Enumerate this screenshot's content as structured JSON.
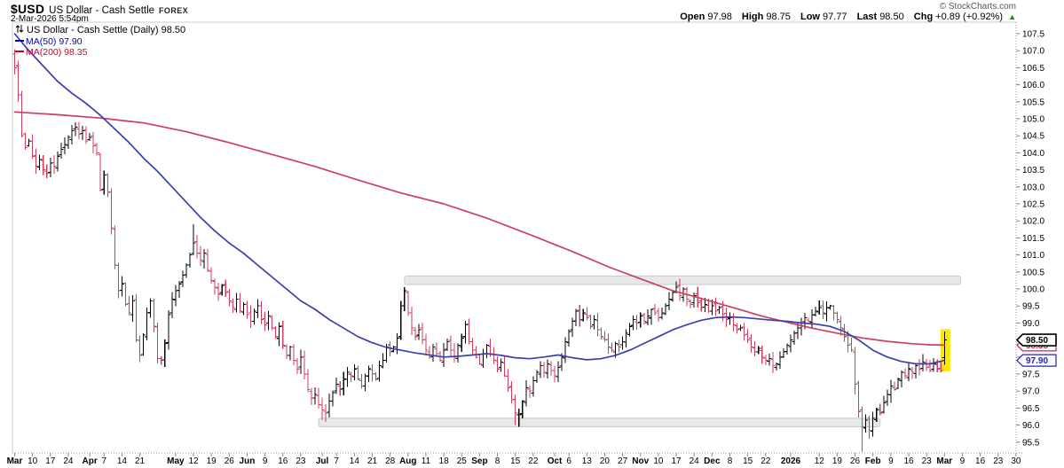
{
  "header": {
    "symbol": "$USD",
    "name": "US Dollar - Cash Settle",
    "exchange": "FOREX",
    "datetime": "2-Mar-2026 5:54pm",
    "copyright": "© StockCharts.com",
    "quote": {
      "open_label": "Open",
      "open": "97.98",
      "high_label": "High",
      "high": "98.75",
      "low_label": "Low",
      "low": "97.77",
      "last_label": "Last",
      "last": "98.50",
      "chg_label": "Chg",
      "chg": "+0.89 (+0.92%)",
      "arrow": "▲",
      "direction": "up"
    }
  },
  "legend": {
    "title": "US Dollar - Cash Settle (Daily) 98.50",
    "ma50": "MA(50) 97.90",
    "ma200": "MA(200) 98.35"
  },
  "chart_data": {
    "type": "ohlc-bar",
    "title": "US Dollar - Cash Settle (Daily)",
    "symbol": "$USD",
    "timeframe": "Daily",
    "last_close": 98.5,
    "prev_close": 97.61,
    "today": {
      "open": 97.98,
      "high": 98.75,
      "low": 97.77,
      "close": 98.5,
      "change": 0.89,
      "change_pct": 0.92
    },
    "ma50_value": 97.9,
    "ma200_value": 98.35,
    "y_axis": {
      "min": 95.5,
      "max": 107.5,
      "step": 0.5
    },
    "x_domain_days": 281,
    "x_ticks": [
      {
        "label": "Mar",
        "day": 0,
        "bold": true
      },
      {
        "label": "10",
        "day": 5
      },
      {
        "label": "17",
        "day": 10
      },
      {
        "label": "24",
        "day": 15
      },
      {
        "label": "Apr",
        "day": 21,
        "bold": true
      },
      {
        "label": "7",
        "day": 25
      },
      {
        "label": "14",
        "day": 30
      },
      {
        "label": "21",
        "day": 35
      },
      {
        "label": "May",
        "day": 45,
        "bold": true
      },
      {
        "label": "12",
        "day": 50
      },
      {
        "label": "19",
        "day": 55
      },
      {
        "label": "26",
        "day": 60
      },
      {
        "label": "Jun",
        "day": 65,
        "bold": true
      },
      {
        "label": "9",
        "day": 70
      },
      {
        "label": "16",
        "day": 75
      },
      {
        "label": "23",
        "day": 80
      },
      {
        "label": "Jul",
        "day": 86,
        "bold": true
      },
      {
        "label": "7",
        "day": 90
      },
      {
        "label": "14",
        "day": 95
      },
      {
        "label": "21",
        "day": 100
      },
      {
        "label": "28",
        "day": 105
      },
      {
        "label": "Aug",
        "day": 110,
        "bold": true
      },
      {
        "label": "11",
        "day": 115
      },
      {
        "label": "18",
        "day": 120
      },
      {
        "label": "25",
        "day": 125
      },
      {
        "label": "Sep",
        "day": 130,
        "bold": true
      },
      {
        "label": "8",
        "day": 135
      },
      {
        "label": "15",
        "day": 140
      },
      {
        "label": "22",
        "day": 145
      },
      {
        "label": "Oct",
        "day": 151,
        "bold": true
      },
      {
        "label": "6",
        "day": 155
      },
      {
        "label": "13",
        "day": 160
      },
      {
        "label": "20",
        "day": 165
      },
      {
        "label": "27",
        "day": 170
      },
      {
        "label": "Nov",
        "day": 175,
        "bold": true
      },
      {
        "label": "10",
        "day": 180
      },
      {
        "label": "17",
        "day": 185
      },
      {
        "label": "24",
        "day": 190
      },
      {
        "label": "Dec",
        "day": 195,
        "bold": true
      },
      {
        "label": "8",
        "day": 200
      },
      {
        "label": "15",
        "day": 205
      },
      {
        "label": "22",
        "day": 210
      },
      {
        "label": "2026",
        "day": 217,
        "bold": true
      },
      {
        "label": "12",
        "day": 225
      },
      {
        "label": "19",
        "day": 230
      },
      {
        "label": "26",
        "day": 235
      },
      {
        "label": "Feb",
        "day": 240,
        "bold": true
      },
      {
        "label": "9",
        "day": 245
      },
      {
        "label": "16",
        "day": 250
      },
      {
        "label": "23",
        "day": 255
      },
      {
        "label": "Mar",
        "day": 260,
        "bold": true
      },
      {
        "label": "9",
        "day": 265
      },
      {
        "label": "16",
        "day": 270
      },
      {
        "label": "23",
        "day": 275
      },
      {
        "label": "30",
        "day": 280
      }
    ],
    "closes": [
      106.5,
      105.7,
      104.5,
      104.15,
      104.35,
      103.9,
      103.6,
      103.8,
      103.5,
      103.4,
      103.7,
      103.6,
      103.9,
      104.1,
      104.25,
      104.45,
      104.65,
      104.75,
      104.55,
      104.65,
      104.35,
      104.45,
      104.2,
      104.0,
      102.9,
      103.35,
      102.85,
      101.8,
      100.7,
      99.95,
      100.15,
      99.55,
      99.3,
      99.65,
      98.5,
      98.05,
      98.65,
      99.3,
      99.65,
      98.9,
      97.95,
      97.9,
      98.4,
      99.25,
      99.7,
      99.95,
      100.15,
      100.4,
      100.7,
      101.0,
      101.35,
      101.05,
      100.85,
      101.05,
      100.55,
      100.25,
      100.05,
      99.85,
      100.1,
      99.9,
      99.65,
      99.45,
      99.7,
      99.35,
      99.55,
      99.25,
      99.05,
      99.35,
      99.5,
      99.1,
      98.95,
      99.2,
      98.85,
      98.6,
      98.9,
      98.35,
      98.05,
      98.3,
      97.9,
      97.65,
      98.0,
      97.5,
      97.05,
      96.8,
      96.9,
      96.6,
      96.45,
      96.35,
      96.7,
      96.95,
      97.2,
      97.05,
      97.35,
      97.55,
      97.45,
      97.65,
      97.35,
      97.15,
      97.45,
      97.65,
      97.5,
      97.35,
      97.75,
      97.9,
      98.3,
      98.15,
      98.3,
      98.55,
      99.5,
      99.95,
      99.3,
      98.85,
      98.6,
      98.8,
      98.5,
      98.2,
      98.0,
      98.3,
      98.1,
      97.9,
      98.2,
      98.45,
      98.2,
      98.0,
      98.35,
      98.55,
      98.95,
      98.45,
      98.2,
      98.0,
      97.8,
      98.1,
      98.35,
      98.1,
      97.9,
      97.65,
      97.85,
      97.45,
      97.1,
      96.75,
      96.35,
      96.3,
      96.7,
      97.1,
      97.0,
      97.3,
      97.55,
      97.75,
      97.55,
      97.8,
      97.6,
      97.45,
      97.7,
      98.0,
      98.45,
      98.75,
      99.05,
      99.35,
      99.1,
      99.3,
      99.15,
      98.9,
      99.1,
      98.8,
      98.6,
      98.5,
      98.3,
      98.2,
      98.4,
      98.3,
      98.45,
      98.7,
      98.9,
      99.1,
      99.0,
      99.2,
      99.05,
      99.2,
      99.4,
      99.3,
      99.15,
      99.3,
      99.5,
      99.7,
      99.9,
      100.05,
      99.8,
      100.0,
      99.7,
      99.55,
      99.8,
      99.6,
      99.45,
      99.55,
      99.35,
      99.5,
      99.35,
      99.45,
      99.25,
      99.1,
      99.15,
      98.95,
      98.8,
      98.85,
      98.65,
      98.5,
      98.3,
      98.15,
      98.25,
      98.0,
      97.9,
      97.95,
      97.75,
      97.8,
      98.0,
      98.15,
      98.35,
      98.5,
      98.7,
      98.85,
      99.0,
      99.15,
      99.05,
      99.25,
      99.35,
      99.45,
      99.3,
      99.45,
      99.5,
      99.3,
      99.1,
      98.85,
      98.6,
      98.35,
      98.2,
      97.2,
      96.4,
      95.95,
      96.15,
      95.85,
      96.2,
      96.45,
      96.35,
      96.65,
      96.9,
      97.15,
      97.05,
      97.35,
      97.55,
      97.45,
      97.65,
      97.55,
      97.75,
      97.65,
      97.85,
      97.7,
      97.6,
      97.8,
      97.65,
      97.61,
      98.5
    ],
    "bar_overrides": [
      {
        "day": 0,
        "open": 106.9,
        "high": 107.05,
        "low": 106.3
      },
      {
        "day": 50,
        "high": 101.9
      },
      {
        "day": 86,
        "low": 96.15
      },
      {
        "day": 87,
        "low": 96.1
      },
      {
        "day": 108,
        "open": 98.6,
        "high": 99.65,
        "low": 98.5
      },
      {
        "day": 109,
        "open": 99.5,
        "high": 100.05,
        "low": 99.35
      },
      {
        "day": 110,
        "open": 99.9,
        "high": 99.95,
        "low": 99.2
      },
      {
        "day": 140,
        "low": 96.0
      },
      {
        "day": 141,
        "low": 95.95
      },
      {
        "day": 186,
        "high": 100.3
      },
      {
        "day": 235,
        "open": 98.15,
        "high": 98.3,
        "low": 96.9
      },
      {
        "day": 237,
        "low": 95.22
      },
      {
        "day": 239,
        "low": 95.6
      },
      {
        "day": 260,
        "open": 97.98,
        "high": 98.75,
        "low": 97.77
      }
    ],
    "ma50_points": [
      [
        0,
        107.5
      ],
      [
        4,
        107.0
      ],
      [
        8,
        106.55
      ],
      [
        12,
        106.1
      ],
      [
        16,
        105.75
      ],
      [
        20,
        105.45
      ],
      [
        24,
        105.1
      ],
      [
        28,
        104.7
      ],
      [
        32,
        104.3
      ],
      [
        36,
        103.85
      ],
      [
        40,
        103.45
      ],
      [
        44,
        103.0
      ],
      [
        48,
        102.55
      ],
      [
        52,
        102.1
      ],
      [
        56,
        101.7
      ],
      [
        60,
        101.35
      ],
      [
        64,
        101.05
      ],
      [
        68,
        100.7
      ],
      [
        72,
        100.35
      ],
      [
        76,
        100.0
      ],
      [
        80,
        99.65
      ],
      [
        84,
        99.4
      ],
      [
        88,
        99.1
      ],
      [
        92,
        98.85
      ],
      [
        96,
        98.6
      ],
      [
        100,
        98.42
      ],
      [
        104,
        98.28
      ],
      [
        108,
        98.2
      ],
      [
        112,
        98.12
      ],
      [
        116,
        98.06
      ],
      [
        120,
        98.0
      ],
      [
        124,
        98.02
      ],
      [
        128,
        98.06
      ],
      [
        132,
        98.1
      ],
      [
        136,
        98.05
      ],
      [
        140,
        97.98
      ],
      [
        144,
        97.95
      ],
      [
        148,
        98.0
      ],
      [
        152,
        98.06
      ],
      [
        156,
        97.98
      ],
      [
        160,
        97.92
      ],
      [
        164,
        97.95
      ],
      [
        168,
        98.05
      ],
      [
        172,
        98.2
      ],
      [
        176,
        98.4
      ],
      [
        180,
        98.6
      ],
      [
        184,
        98.8
      ],
      [
        188,
        98.95
      ],
      [
        192,
        99.08
      ],
      [
        196,
        99.16
      ],
      [
        200,
        99.18
      ],
      [
        204,
        99.16
      ],
      [
        208,
        99.12
      ],
      [
        212,
        99.08
      ],
      [
        216,
        99.05
      ],
      [
        220,
        99.0
      ],
      [
        224,
        98.97
      ],
      [
        228,
        98.9
      ],
      [
        232,
        98.75
      ],
      [
        236,
        98.5
      ],
      [
        240,
        98.2
      ],
      [
        244,
        98.0
      ],
      [
        248,
        97.87
      ],
      [
        252,
        97.8
      ],
      [
        256,
        97.8
      ],
      [
        260,
        97.9
      ]
    ],
    "ma200_points": [
      [
        0,
        105.2
      ],
      [
        12,
        105.12
      ],
      [
        24,
        105.02
      ],
      [
        36,
        104.88
      ],
      [
        48,
        104.62
      ],
      [
        60,
        104.3
      ],
      [
        72,
        103.95
      ],
      [
        84,
        103.6
      ],
      [
        96,
        103.2
      ],
      [
        108,
        102.82
      ],
      [
        120,
        102.5
      ],
      [
        132,
        102.08
      ],
      [
        144,
        101.6
      ],
      [
        156,
        101.1
      ],
      [
        166,
        100.65
      ],
      [
        177,
        100.22
      ],
      [
        184,
        99.95
      ],
      [
        190,
        99.78
      ],
      [
        196,
        99.6
      ],
      [
        202,
        99.42
      ],
      [
        209,
        99.2
      ],
      [
        216,
        99.02
      ],
      [
        223,
        98.85
      ],
      [
        230,
        98.7
      ],
      [
        237,
        98.56
      ],
      [
        244,
        98.46
      ],
      [
        251,
        98.39
      ],
      [
        256,
        98.36
      ],
      [
        260,
        98.35
      ]
    ],
    "bands": [
      {
        "name": "resistance-zone",
        "day_start": 109,
        "day_end": 264.5,
        "price_top": 100.38,
        "price_bottom": 100.13
      },
      {
        "name": "support-zone",
        "day_start": 85,
        "day_end": 242,
        "price_top": 96.2,
        "price_bottom": 95.95
      }
    ],
    "highlight_last_bar": {
      "day": 260,
      "price_top": 98.82,
      "price_bottom": 97.58
    },
    "price_tags": [
      {
        "text": "98.35",
        "price": 98.35,
        "color": "#cc2244",
        "text_color": "#cc2244",
        "stroke": 1.2
      },
      {
        "text": "98.50",
        "price": 98.5,
        "color": "#000000",
        "text_color": "#000000",
        "stroke": 1.6,
        "bold": true
      },
      {
        "text": "97.90",
        "price": 97.9,
        "color": "#2222bb",
        "text_color": "#2222bb",
        "stroke": 1.2
      }
    ],
    "colors": {
      "up": "#000000",
      "down": "#ce3f5c",
      "ma50": "#3a3fae",
      "ma200": "#ce3f5c",
      "band_fill": "#e8e8e8",
      "band_border": "#c8c8c8",
      "highlight": "#ffe800",
      "axis_text": "#000000",
      "frame": "#cccccc",
      "axis_line": "#999999",
      "legend_ma50": "#0000bb",
      "legend_ma200": "#cc0033",
      "arrow_up": "#009900",
      "copyright": "#555555"
    }
  }
}
